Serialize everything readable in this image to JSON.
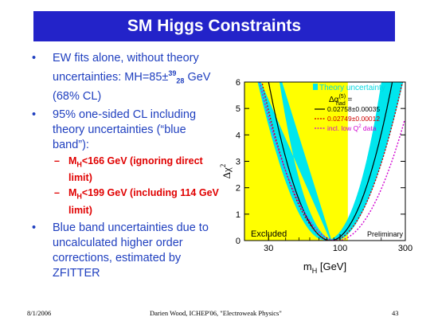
{
  "slide": {
    "title": "SM Higgs Constraints",
    "bullets": [
      {
        "text_a": "EW fits alone, without theory uncertainties:  MH=85±",
        "sup": "39",
        "sub": "28",
        "text_b": " GeV (68% CL)"
      },
      {
        "text": "95% one-sided CL including theory uncertainties (“blue band”):"
      },
      {
        "text": "Blue band uncertainties due to uncalculated higher order corrections, estimated by ZFITTER"
      }
    ],
    "subbullets": [
      {
        "pre": "M",
        "sub": "H",
        "post": "<166 GeV (ignoring direct limit)"
      },
      {
        "pre": "M",
        "sub": "H",
        "post": "<199 GeV (including 114 GeV limit)"
      }
    ],
    "footer": {
      "date": "8/1/2006",
      "center": "Darien Wood, ICHEP'06, \"Electroweak Physics\"",
      "page": "43"
    }
  },
  "chart_data": {
    "type": "line",
    "xscale": "log",
    "xlim": [
      20,
      300
    ],
    "ylim": [
      0,
      6
    ],
    "x_ticks": [
      30,
      100,
      300
    ],
    "y_ticks": [
      0,
      1,
      2,
      3,
      4,
      5,
      6
    ],
    "xlabel": "m",
    "xlabel_sub": "H",
    "xlabel_unit": " [GeV]",
    "ylabel": "Δχ",
    "ylabel_sup": "2",
    "excluded_region": {
      "x_max": 114,
      "label": "Excluded",
      "color": "#ffff00"
    },
    "theory_band": {
      "x_min": 61,
      "x_max": 190,
      "color": "#00e6ee"
    },
    "preliminary_label": "Preliminary",
    "legend": {
      "placement": "top-right",
      "band_label": "Theory uncertainty",
      "alpha_label": "Δα",
      "alpha_sup": "(5)",
      "alpha_sub": "had",
      "alpha_eq": " =",
      "items": [
        {
          "label": "0.02758±0.00035",
          "color": "#000000",
          "dash": "solid"
        },
        {
          "label": "0.02749±0.00012",
          "color": "#cc0000",
          "dash": "dotted"
        },
        {
          "label_pre": "incl. low Q",
          "label_sup": "2",
          "label_post": " data",
          "color": "#d000d0",
          "dash": "dotted"
        }
      ]
    },
    "curves": {
      "band_min_x": 85,
      "band_min_half_width_decades": 0.035,
      "band_max_half_width_decades": 0.08,
      "central": {
        "min_x": 85,
        "shape": "parabola in log10(mH)",
        "delta_chi2_at_30": 6.0
      },
      "red_dotted": {
        "min_x": 85,
        "delta_chi2_at_30": 6.0
      },
      "magenta_dotted": {
        "min_x": 95,
        "delta_chi2_at_30": 6.0
      }
    }
  }
}
